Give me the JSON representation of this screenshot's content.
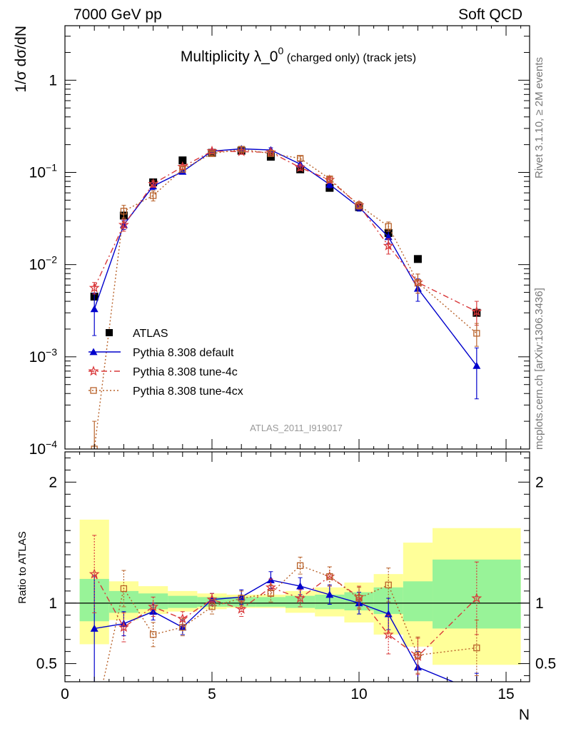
{
  "header": {
    "left": "7000 GeV pp",
    "right": "Soft QCD"
  },
  "side_labels": {
    "rivet": "Rivet 3.1.10, ≥ 2M events",
    "url": "mcplots.cern.ch [arXiv:1306.3436]"
  },
  "watermark": "ATLAS_2011_I919017",
  "colors": {
    "atlas": "#000000",
    "default": "#0000cc",
    "tune4c": "#d9383a",
    "tune4cx": "#b8622a",
    "band_inner": "#98f398",
    "band_outer": "#ffff99"
  },
  "chart_data": [
    {
      "type": "scatter",
      "title": "Multiplicity λ_0",
      "title_superscript": "0",
      "title_suffix": " (charged only) (track jets)",
      "ylabel": "1/σ dσ/dN",
      "yscale": "log",
      "ylim": [
        0.0001,
        3.9
      ],
      "xlim": [
        0,
        15.8
      ],
      "y_ticks": [
        0.0001,
        0.001,
        0.01,
        0.1,
        1
      ],
      "y_tick_labels": [
        {
          "base": "10",
          "exp": "−4"
        },
        {
          "base": "10",
          "exp": "−3"
        },
        {
          "base": "10",
          "exp": "−2"
        },
        {
          "base": "10",
          "exp": "−1"
        },
        {
          "base": "1",
          "exp": ""
        }
      ],
      "legend_position": "bottom-left",
      "series": [
        {
          "name": "ATLAS",
          "x": [
            1,
            2,
            3,
            4,
            5,
            6,
            7,
            8,
            9,
            10,
            11,
            12,
            14
          ],
          "y": [
            0.0045,
            0.034,
            0.078,
            0.135,
            0.163,
            0.172,
            0.148,
            0.108,
            0.068,
            0.042,
            0.022,
            0.0115,
            0.003
          ]
        },
        {
          "name": "Pythia 8.308 default",
          "x": [
            1,
            2,
            3,
            4,
            5,
            6,
            7,
            8,
            9,
            10,
            11,
            12,
            14
          ],
          "y": [
            0.0033,
            0.027,
            0.071,
            0.102,
            0.17,
            0.18,
            0.175,
            0.123,
            0.074,
            0.042,
            0.02,
            0.0055,
            0.0008
          ],
          "err_low": [
            0.0016,
            0.003,
            0.006,
            0.006,
            0.008,
            0.01,
            0.01,
            0.008,
            0.006,
            0.004,
            0.003,
            0.0015,
            0.00045
          ],
          "err_high": [
            0.0016,
            0.003,
            0.006,
            0.006,
            0.008,
            0.01,
            0.01,
            0.008,
            0.006,
            0.004,
            0.003,
            0.0015,
            0.00045
          ]
        },
        {
          "name": "Pythia 8.308 tune-4c",
          "x": [
            1,
            2,
            3,
            4,
            5,
            6,
            7,
            8,
            9,
            10,
            11,
            12,
            14
          ],
          "y": [
            0.0056,
            0.027,
            0.075,
            0.115,
            0.17,
            0.168,
            0.165,
            0.113,
            0.083,
            0.044,
            0.016,
            0.0064,
            0.0031
          ],
          "err_low": [
            0.0008,
            0.004,
            0.006,
            0.007,
            0.008,
            0.01,
            0.01,
            0.008,
            0.006,
            0.004,
            0.003,
            0.0015,
            0.0009
          ],
          "err_high": [
            0.0008,
            0.004,
            0.006,
            0.007,
            0.008,
            0.01,
            0.01,
            0.008,
            0.006,
            0.004,
            0.003,
            0.0015,
            0.0009
          ]
        },
        {
          "name": "Pythia 8.308 tune-4cx",
          "x": [
            1,
            2,
            3,
            4,
            5,
            6,
            7,
            8,
            9,
            10,
            11,
            12,
            14
          ],
          "y": [
            0.0001,
            0.038,
            0.056,
            0.108,
            0.16,
            0.178,
            0.16,
            0.142,
            0.085,
            0.044,
            0.026,
            0.0064,
            0.0018
          ],
          "err_low": [
            5e-05,
            0.006,
            0.007,
            0.007,
            0.008,
            0.01,
            0.01,
            0.008,
            0.006,
            0.004,
            0.003,
            0.0015,
            0.0005
          ],
          "err_high": [
            0.0001,
            0.006,
            0.007,
            0.007,
            0.008,
            0.01,
            0.01,
            0.008,
            0.006,
            0.004,
            0.003,
            0.0015,
            0.0005
          ]
        }
      ]
    },
    {
      "type": "line",
      "ylabel": "Ratio to ATLAS",
      "xlabel": "N",
      "xlim": [
        0,
        15.8
      ],
      "ylim": [
        0.35,
        2.25
      ],
      "x_ticks": [
        0,
        5,
        10,
        15
      ],
      "y_ticks": [
        0.5,
        1,
        2
      ],
      "reference_line": 1,
      "bands": {
        "edges": [
          0.5,
          1.5,
          2.5,
          3.5,
          4.5,
          5.5,
          6.5,
          7.5,
          8.5,
          9.5,
          10.5,
          11.5,
          12.5,
          15.5
        ],
        "inner_low": [
          0.85,
          0.92,
          0.95,
          0.96,
          0.97,
          0.97,
          0.97,
          0.96,
          0.95,
          0.94,
          0.91,
          0.85,
          0.79
        ],
        "inner_high": [
          1.2,
          1.1,
          1.08,
          1.06,
          1.05,
          1.05,
          1.05,
          1.06,
          1.07,
          1.09,
          1.13,
          1.18,
          1.36
        ],
        "outer_low": [
          0.66,
          0.86,
          0.91,
          0.93,
          0.95,
          0.96,
          0.96,
          0.92,
          0.89,
          0.84,
          0.74,
          0.64,
          0.49
        ],
        "outer_high": [
          1.69,
          1.18,
          1.14,
          1.1,
          1.08,
          1.07,
          1.07,
          1.1,
          1.13,
          1.17,
          1.24,
          1.5,
          1.62
        ]
      },
      "series": [
        {
          "name": "Pythia 8.308 default",
          "x": [
            1,
            2,
            3,
            4,
            5,
            6,
            7,
            8,
            9,
            10,
            11,
            12,
            14
          ],
          "y": [
            0.79,
            0.83,
            0.93,
            0.8,
            1.03,
            1.05,
            1.19,
            1.14,
            1.07,
            1.0,
            0.91,
            0.47,
            0.27
          ],
          "err_low": [
            0.44,
            0.1,
            0.07,
            0.06,
            0.05,
            0.06,
            0.07,
            0.07,
            0.08,
            0.09,
            0.13,
            0.13,
            0.15
          ],
          "err_high": [
            0.44,
            0.1,
            0.07,
            0.06,
            0.05,
            0.06,
            0.07,
            0.07,
            0.08,
            0.09,
            0.13,
            0.13,
            0.15
          ]
        },
        {
          "name": "Pythia 8.308 tune-4c",
          "x": [
            1,
            2,
            3,
            4,
            5,
            6,
            7,
            8,
            9,
            10,
            11,
            12,
            14
          ],
          "y": [
            1.24,
            0.8,
            0.97,
            0.87,
            1.03,
            0.95,
            1.13,
            1.04,
            1.22,
            1.05,
            0.74,
            0.56,
            1.04
          ],
          "err_low": [
            0.32,
            0.12,
            0.08,
            0.06,
            0.05,
            0.06,
            0.07,
            0.07,
            0.08,
            0.09,
            0.16,
            0.15,
            0.3
          ],
          "err_high": [
            0.32,
            0.12,
            0.08,
            0.06,
            0.05,
            0.06,
            0.07,
            0.07,
            0.08,
            0.09,
            0.16,
            0.15,
            0.3
          ]
        },
        {
          "name": "Pythia 8.308 tune-4cx",
          "x": [
            1,
            2,
            3,
            4,
            5,
            6,
            7,
            8,
            9,
            10,
            11,
            12,
            14
          ],
          "y": [
            0.02,
            1.12,
            0.74,
            0.8,
            0.97,
            1.04,
            1.08,
            1.31,
            1.22,
            1.04,
            1.15,
            0.57,
            0.63
          ],
          "err_low": [
            0.0,
            0.15,
            0.1,
            0.07,
            0.06,
            0.06,
            0.07,
            0.07,
            0.08,
            0.09,
            0.14,
            0.15,
            0.23
          ],
          "err_high": [
            0.0,
            0.15,
            0.1,
            0.07,
            0.06,
            0.06,
            0.07,
            0.07,
            0.08,
            0.09,
            0.14,
            0.15,
            0.23
          ]
        }
      ]
    }
  ]
}
